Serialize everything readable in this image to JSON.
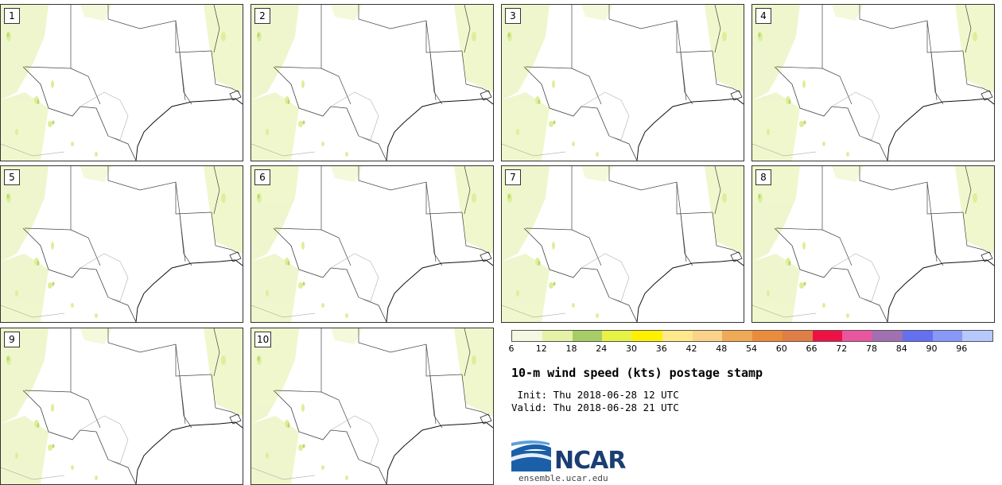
{
  "panels": [
    {
      "label": "1"
    },
    {
      "label": "2"
    },
    {
      "label": "3"
    },
    {
      "label": "4"
    },
    {
      "label": "5"
    },
    {
      "label": "6"
    },
    {
      "label": "7"
    },
    {
      "label": "8"
    },
    {
      "label": "9"
    },
    {
      "label": "10"
    }
  ],
  "colorbar": {
    "ticks": [
      "6",
      "12",
      "18",
      "24",
      "30",
      "36",
      "42",
      "48",
      "54",
      "60",
      "66",
      "72",
      "78",
      "84",
      "90",
      "96"
    ],
    "colors": [
      "#f5f8e2",
      "#e4f3a6",
      "#a8cc66",
      "#e8f244",
      "#fff000",
      "#ffe98a",
      "#fcd389",
      "#f0a955",
      "#ea8c3c",
      "#e07e45",
      "#ee1144",
      "#e9559e",
      "#a070b0",
      "#6470f0",
      "#8898f8",
      "#b8c8fc"
    ]
  },
  "title": "10-m wind speed (kts) postage stamp",
  "init_line": " Init: Thu 2018-06-28 12 UTC",
  "valid_line": "Valid: Thu 2018-06-28 21 UTC",
  "logo": {
    "text": "NCAR",
    "icon": "ncar-logo-icon"
  },
  "site": "ensemble.ucar.edu"
}
